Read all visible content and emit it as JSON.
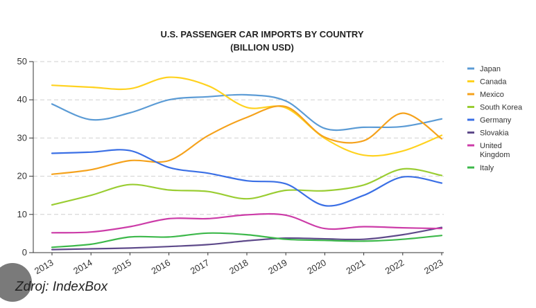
{
  "chart_data": {
    "type": "line",
    "title": "U.S. PASSENGER CAR IMPORTS BY COUNTRY",
    "subtitle": "(BILLION USD)",
    "xlabel": "",
    "ylabel": "",
    "x": [
      "2013",
      "2014",
      "2015",
      "2016",
      "2017",
      "2018",
      "2019",
      "2020",
      "2021",
      "2022",
      "2023"
    ],
    "ylim": [
      0,
      50
    ],
    "yticks": [
      0,
      10,
      20,
      30,
      40,
      50
    ],
    "grid": "horizontal-dashed",
    "legend_position": "right",
    "series": [
      {
        "name": "Japan",
        "color": "#5b9bd5",
        "values": [
          38.9,
          34.8,
          36.6,
          40.0,
          40.8,
          41.3,
          39.7,
          32.5,
          32.8,
          33.0,
          35.0
        ]
      },
      {
        "name": "Canada",
        "color": "#ffd21f",
        "values": [
          43.8,
          43.3,
          42.9,
          45.9,
          43.7,
          38.0,
          37.9,
          29.9,
          25.5,
          26.6,
          30.7
        ]
      },
      {
        "name": "Mexico",
        "color": "#f5a21c",
        "values": [
          20.5,
          21.7,
          24.1,
          24.1,
          30.6,
          35.4,
          38.2,
          30.2,
          29.3,
          36.5,
          29.8
        ]
      },
      {
        "name": "South Korea",
        "color": "#9acd32",
        "values": [
          12.5,
          15.0,
          17.8,
          16.4,
          16.0,
          14.1,
          16.3,
          16.2,
          17.7,
          21.9,
          20.2
        ]
      },
      {
        "name": "Germany",
        "color": "#3a6fe5",
        "values": [
          26.0,
          26.3,
          26.7,
          22.3,
          20.8,
          18.8,
          18.0,
          12.3,
          15.0,
          19.8,
          18.2
        ]
      },
      {
        "name": "Slovakia",
        "color": "#5e4a8a",
        "values": [
          0.8,
          1.0,
          1.2,
          1.6,
          2.1,
          3.1,
          3.8,
          3.6,
          3.5,
          4.7,
          6.6
        ]
      },
      {
        "name": "United Kingdom",
        "color": "#cc3ca8",
        "values": [
          5.2,
          5.4,
          6.8,
          8.9,
          8.9,
          9.9,
          9.8,
          6.3,
          6.8,
          6.5,
          6.3
        ]
      },
      {
        "name": "Italy",
        "color": "#3cb84a",
        "values": [
          1.4,
          2.2,
          4.1,
          4.1,
          5.1,
          4.7,
          3.5,
          3.2,
          3.0,
          3.5,
          4.5
        ]
      }
    ]
  },
  "source_text": "Zdroj: IndexBox",
  "logo_name": "indexbox-logo"
}
